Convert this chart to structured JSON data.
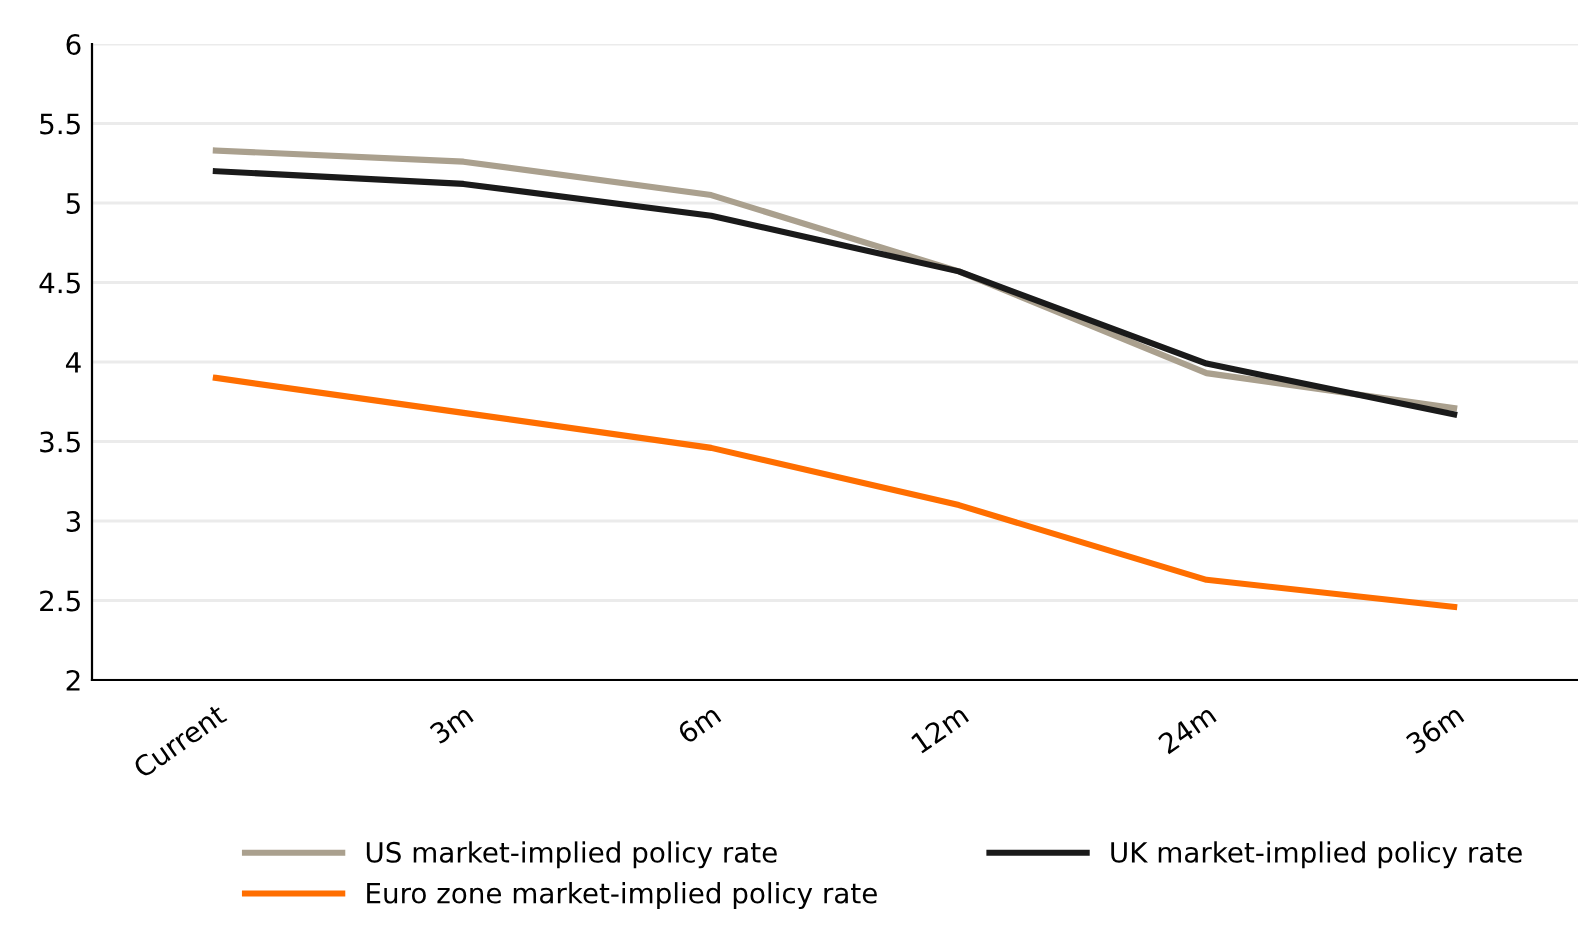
{
  "chart_data": {
    "type": "line",
    "categories": [
      "Current",
      "3m",
      "6m",
      "12m",
      "24m",
      "36m"
    ],
    "series": [
      {
        "name": "US market-implied policy rate",
        "color": "#aaa08e",
        "values": [
          5.33,
          5.26,
          5.05,
          4.57,
          3.93,
          3.71
        ]
      },
      {
        "name": "Euro zone market-implied policy rate",
        "color": "#ff6e00",
        "values": [
          3.9,
          3.68,
          3.46,
          3.1,
          2.63,
          2.46
        ]
      },
      {
        "name": "UK market-implied policy rate",
        "color": "#1a1a1a",
        "values": [
          5.2,
          5.12,
          4.92,
          4.57,
          3.99,
          3.67
        ]
      }
    ],
    "ylim": [
      2,
      6
    ],
    "yticks": [
      2,
      2.5,
      3,
      3.5,
      4,
      4.5,
      5,
      5.5,
      6
    ],
    "grid": "y",
    "legend": "bottom",
    "marker": "none",
    "line_style": "solid"
  }
}
